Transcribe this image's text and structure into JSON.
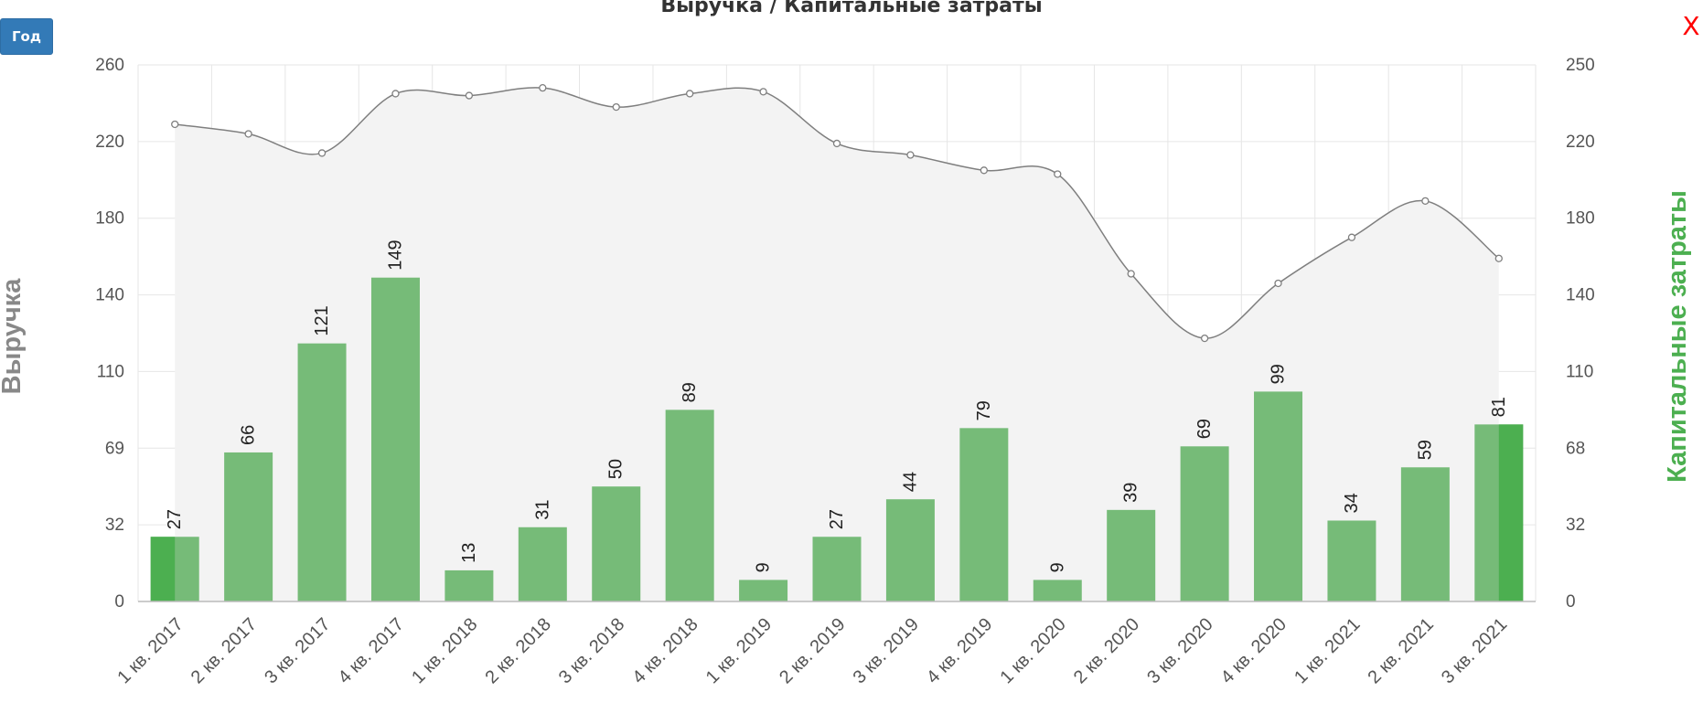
{
  "controls": {
    "period_button": "Год",
    "close_button": "X"
  },
  "colors": {
    "revenue_line": "#7f7f7f",
    "revenue_area": "#f3f3f3",
    "capex_bar": "#76bb78",
    "capex_bar_highlight": "#4caf50",
    "left_axis_title": "#888888",
    "right_axis_title": "#4caf50",
    "grid": "#e6e6e6"
  },
  "chart_data": {
    "type": "bar",
    "title": "Выручка / Капитальные затраты",
    "categories": [
      "1 кв. 2017",
      "2 кв. 2017",
      "3 кв. 2017",
      "4 кв. 2017",
      "1 кв. 2018",
      "2 кв. 2018",
      "3 кв. 2018",
      "4 кв. 2018",
      "1 кв. 2019",
      "2 кв. 2019",
      "3 кв. 2019",
      "4 кв. 2019",
      "1 кв. 2020",
      "2 кв. 2020",
      "3 кв. 2020",
      "4 кв. 2020",
      "1 кв. 2021",
      "2 кв. 2021",
      "3 кв. 2021"
    ],
    "series": [
      {
        "name": "Выручка",
        "type": "area-spline",
        "axis": "left",
        "values": [
          229,
          224,
          214,
          245,
          244,
          248,
          238,
          245,
          246,
          219,
          213,
          205,
          203,
          151,
          123,
          146,
          170,
          189,
          159
        ]
      },
      {
        "name": "Капитальные затраты",
        "type": "bar",
        "axis": "right",
        "values": [
          27,
          66,
          121,
          149,
          13,
          31,
          50,
          89,
          9,
          27,
          44,
          79,
          9,
          39,
          69,
          99,
          34,
          59,
          81
        ]
      }
    ],
    "left_axis": {
      "label": "Выручка",
      "ticks": [
        "0",
        "32",
        "69",
        "110",
        "140",
        "180",
        "220",
        "260"
      ]
    },
    "right_axis": {
      "label": "Капитальные затраты",
      "ticks": [
        "0",
        "32",
        "68",
        "110",
        "140",
        "180",
        "220",
        "250"
      ]
    },
    "grid": true,
    "legend": "none"
  }
}
